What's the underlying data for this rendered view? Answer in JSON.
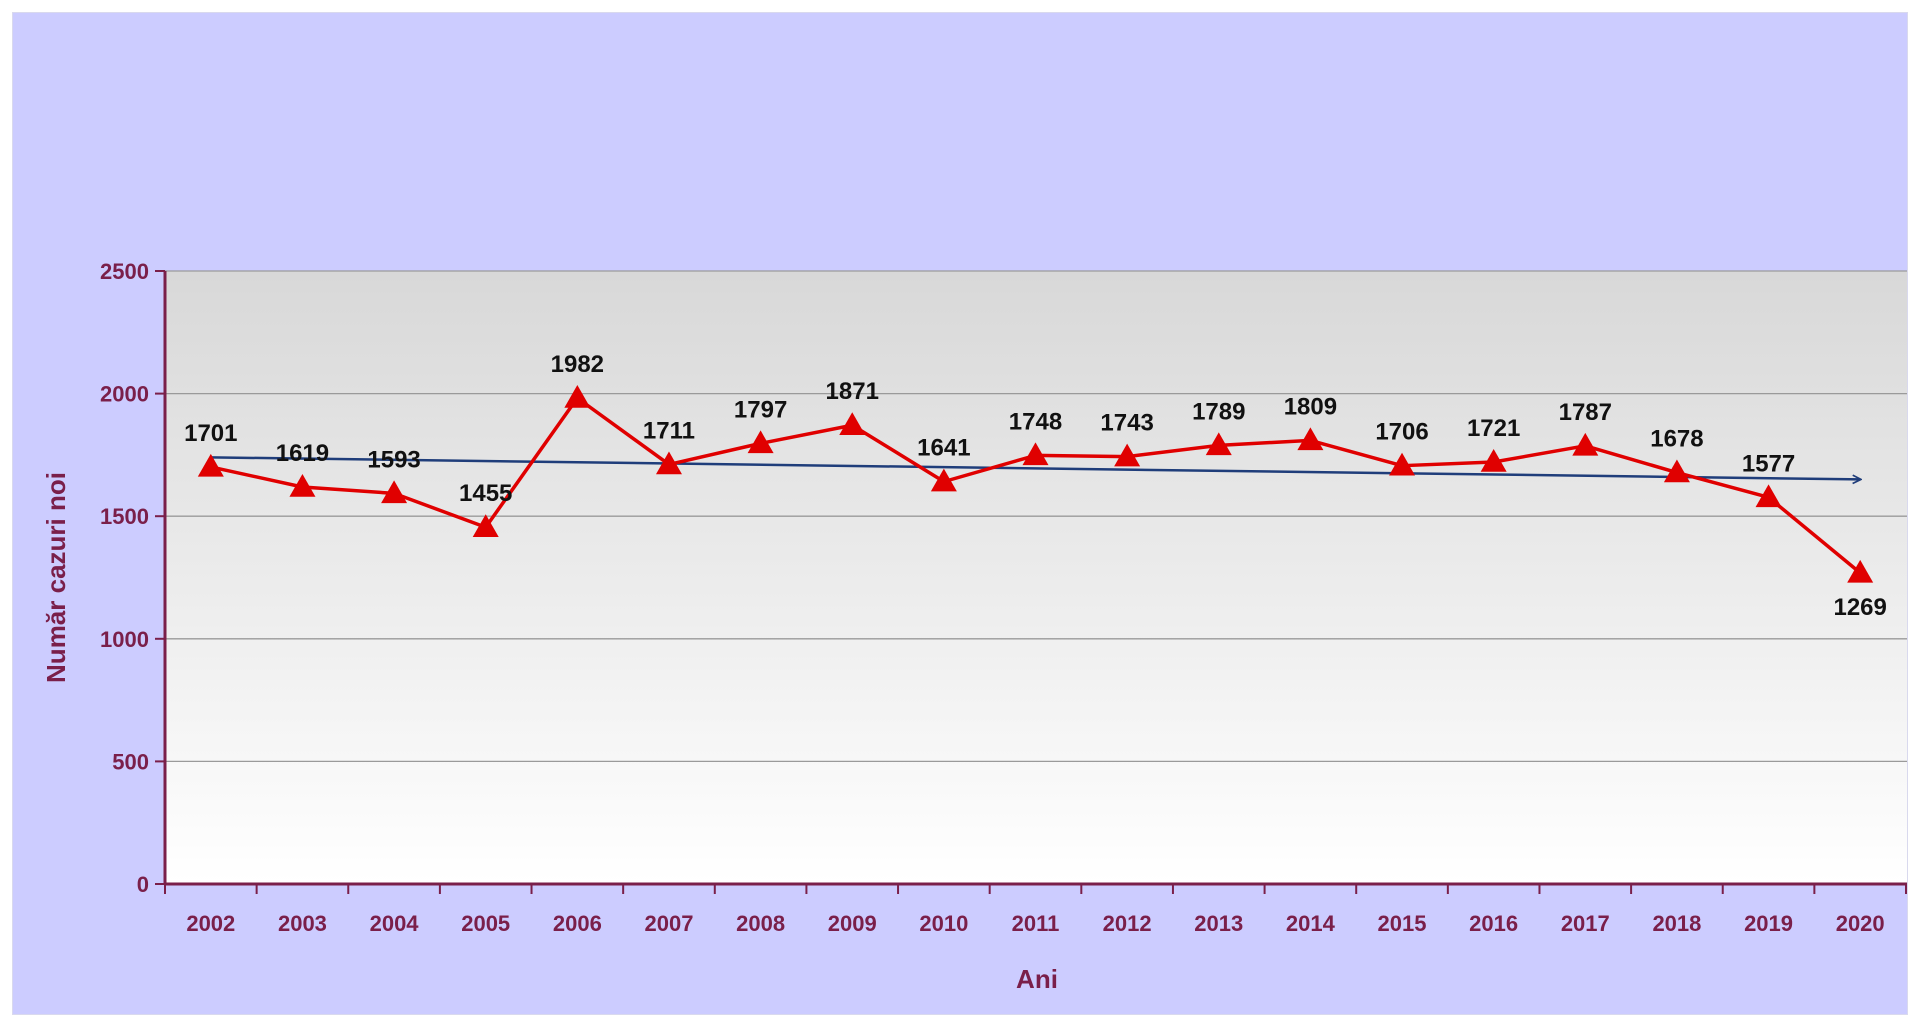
{
  "chart_data": {
    "type": "line",
    "title": "",
    "xlabel": "Ani",
    "ylabel": "Număr cazuri noi",
    "ylim": [
      0,
      2500
    ],
    "yticks": [
      0,
      500,
      1000,
      1500,
      2000,
      2500
    ],
    "grid": true,
    "legend": "none",
    "categories": [
      "2002",
      "2003",
      "2004",
      "2005",
      "2006",
      "2007",
      "2008",
      "2009",
      "2010",
      "2011",
      "2012",
      "2013",
      "2014",
      "2015",
      "2016",
      "2017",
      "2018",
      "2019",
      "2020"
    ],
    "series": [
      {
        "values": [
          1701,
          1619,
          1593,
          1455,
          1982,
          1711,
          1797,
          1871,
          1641,
          1748,
          1743,
          1789,
          1809,
          1706,
          1721,
          1787,
          1678,
          1577,
          1269
        ],
        "color": "#e00000",
        "marker": "triangle"
      }
    ],
    "trendline": {
      "from": 1740,
      "to": 1650,
      "color": "#1f3d7a",
      "arrow": true
    },
    "colors": {
      "background": "#ccccff",
      "plot_top": "#d8d8d8",
      "plot_bottom": "#ffffff",
      "axis": "#7a1f4a",
      "gridline": "#9a9a9a"
    }
  }
}
